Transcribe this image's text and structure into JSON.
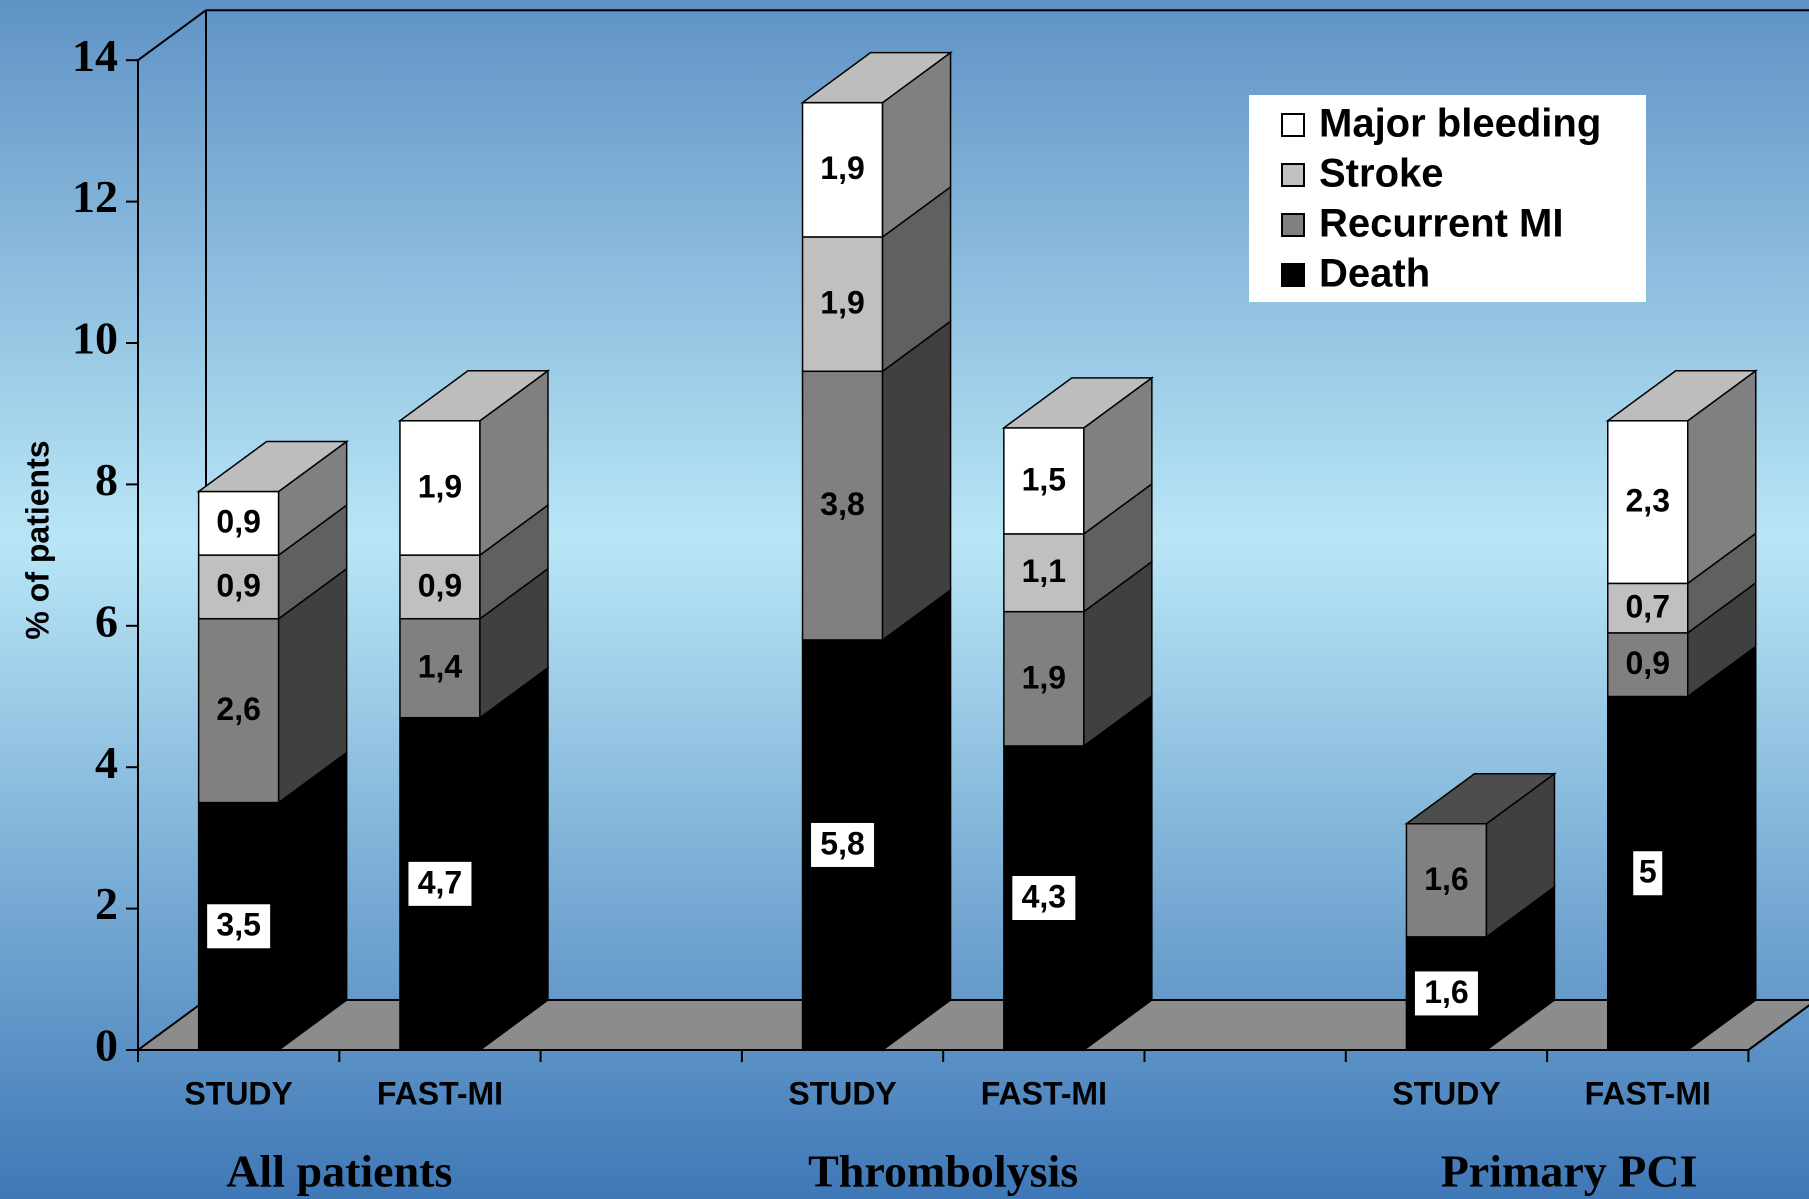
{
  "chart_data": {
    "type": "bar",
    "stacked": true,
    "three_d": true,
    "ylabel": "% of patients",
    "ylim": [
      0,
      14
    ],
    "yticks": [
      "0",
      "2",
      "4",
      "6",
      "8",
      "10",
      "12",
      "14"
    ],
    "groups": [
      "All patients",
      "Thrombolysis",
      "Primary PCI"
    ],
    "categories": [
      "STUDY",
      "FAST-MI",
      "STUDY",
      "FAST-MI",
      "STUDY",
      "FAST-MI"
    ],
    "series": [
      {
        "name": "Death",
        "color": "#000000",
        "values": [
          3.5,
          4.7,
          5.8,
          4.3,
          1.6,
          5.0
        ],
        "labels": [
          "3,5",
          "4,7",
          "5,8",
          "4,3",
          "1,6",
          "5"
        ]
      },
      {
        "name": "Recurrent MI",
        "color": "#808080",
        "values": [
          2.6,
          1.4,
          3.8,
          1.9,
          1.6,
          0.9
        ],
        "labels": [
          "2,6",
          "1,4",
          "3,8",
          "1,9",
          "1,6",
          "0,9"
        ]
      },
      {
        "name": "Stroke",
        "color": "#c0c0c0",
        "values": [
          0.9,
          0.9,
          1.9,
          1.1,
          0,
          0.7
        ],
        "labels": [
          "0,9",
          "0,9",
          "1,9",
          "1,1",
          "",
          "0,7"
        ]
      },
      {
        "name": "Major bleeding",
        "color": "#ffffff",
        "values": [
          0.9,
          1.9,
          1.9,
          1.5,
          0,
          2.3
        ],
        "labels": [
          "0,9",
          "1,9",
          "1,9",
          "1,5",
          "",
          "2,3"
        ]
      }
    ],
    "legend": {
      "position": "top-right",
      "order": [
        "Major bleeding",
        "Stroke",
        "Recurrent MI",
        "Death"
      ]
    },
    "background": {
      "top": "#5f93c6",
      "middle": "#b9e6f6",
      "bottom": "#3f78b7"
    }
  }
}
